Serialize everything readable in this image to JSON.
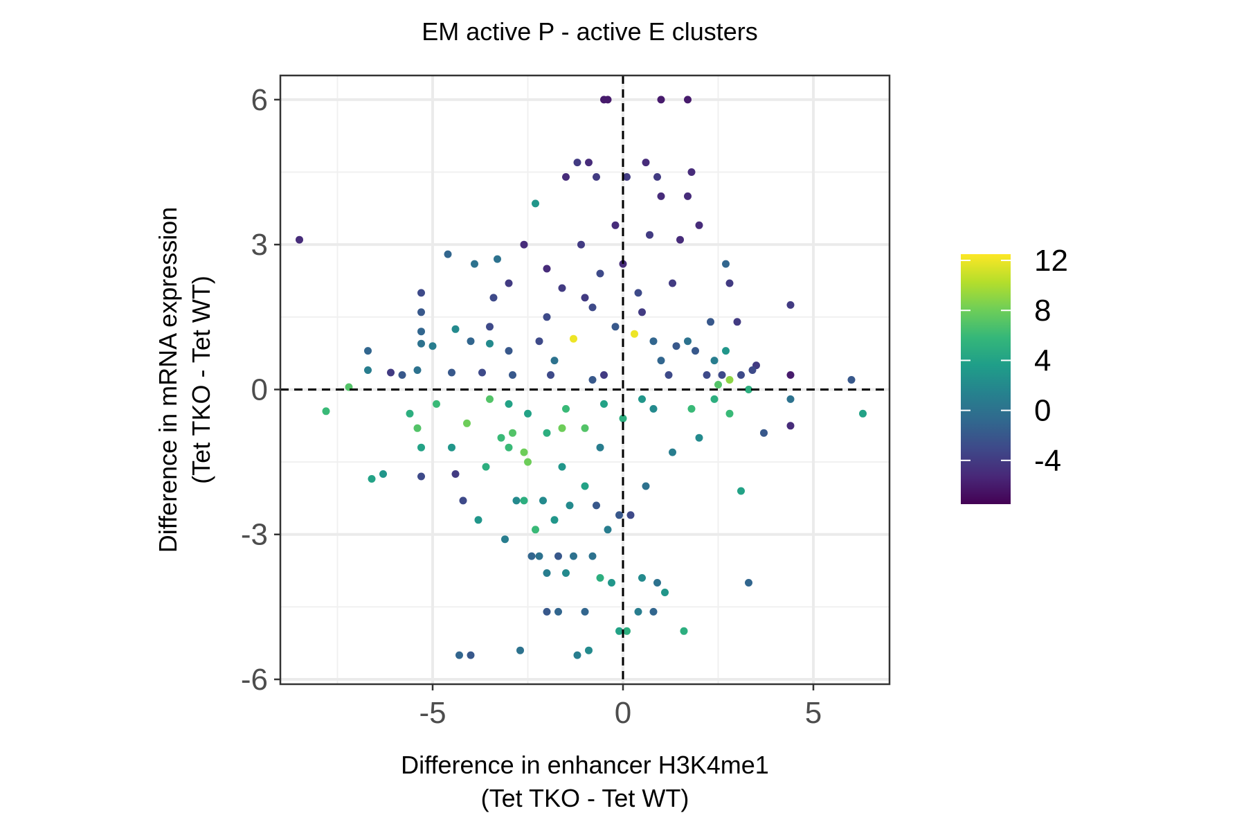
{
  "chart_data": {
    "type": "scatter",
    "title": "EM active P - active E clusters",
    "xlabel": [
      "Difference in enhancer H3K4me1",
      "(Tet TKO - Tet WT)"
    ],
    "ylabel": [
      "Difference in mRNA expression",
      "(Tet TKO - Tet WT)"
    ],
    "xlim": [
      -9.0,
      7.0
    ],
    "ylim": [
      -6.1,
      6.5
    ],
    "x_ticks": [
      -5,
      0,
      5
    ],
    "x_tick_labels": [
      "-5",
      "0",
      "5"
    ],
    "y_ticks": [
      -6,
      -3,
      0,
      3,
      6
    ],
    "y_tick_labels": [
      "-6",
      "-3",
      "0",
      "3",
      "6"
    ],
    "reference_lines": {
      "x": 0,
      "y": 0,
      "style": "dashed"
    },
    "grid": true,
    "legend": {
      "type": "colorbar",
      "placement": "right",
      "palette": "viridis",
      "range": [
        -7.5,
        12.5
      ],
      "ticks": [
        12,
        8,
        4,
        0,
        -4
      ],
      "tick_labels": [
        "12",
        "8",
        "4",
        "0",
        "-4"
      ],
      "stops": [
        "#440154",
        "#482878",
        "#3e4989",
        "#31688e",
        "#26828e",
        "#1f9e89",
        "#35b779",
        "#6ece58",
        "#b5de2b",
        "#fde725"
      ]
    },
    "points": [
      [
        -8.5,
        3.1,
        -5
      ],
      [
        -7.8,
        -0.45,
        6
      ],
      [
        -7.2,
        0.05,
        7
      ],
      [
        -6.7,
        0.8,
        -1
      ],
      [
        -6.7,
        0.4,
        1
      ],
      [
        -6.6,
        -1.85,
        4
      ],
      [
        -6.3,
        -1.75,
        3
      ],
      [
        -6.1,
        0.35,
        -4
      ],
      [
        -5.8,
        0.3,
        -2
      ],
      [
        -5.6,
        -0.5,
        5
      ],
      [
        -5.4,
        0.4,
        0
      ],
      [
        -5.4,
        -0.8,
        7
      ],
      [
        -5.3,
        2.0,
        -3
      ],
      [
        -5.3,
        1.6,
        -2
      ],
      [
        -5.3,
        1.2,
        -1
      ],
      [
        -5.3,
        0.95,
        0
      ],
      [
        -5.3,
        -1.2,
        4
      ],
      [
        -5.3,
        -1.8,
        -3
      ],
      [
        -5.0,
        0.9,
        1
      ],
      [
        -4.9,
        -0.3,
        6
      ],
      [
        -4.6,
        2.8,
        -1
      ],
      [
        -4.5,
        0.35,
        -2
      ],
      [
        -4.5,
        -1.2,
        3
      ],
      [
        -4.4,
        1.25,
        2
      ],
      [
        -4.4,
        -1.75,
        -4
      ],
      [
        -4.3,
        -5.5,
        -1
      ],
      [
        -4.2,
        -2.3,
        -3
      ],
      [
        -4.1,
        -0.7,
        8
      ],
      [
        -4.0,
        -5.5,
        -2
      ],
      [
        -4.0,
        1.0,
        -1
      ],
      [
        -3.9,
        2.6,
        0
      ],
      [
        -3.8,
        -2.7,
        3
      ],
      [
        -3.7,
        0.35,
        -3
      ],
      [
        -3.6,
        -1.6,
        5
      ],
      [
        -3.5,
        0.95,
        2
      ],
      [
        -3.5,
        1.3,
        -3
      ],
      [
        -3.4,
        1.9,
        -3
      ],
      [
        -3.3,
        2.7,
        0
      ],
      [
        -3.2,
        -1.0,
        6
      ],
      [
        -3.1,
        -3.1,
        1
      ],
      [
        -3.0,
        2.2,
        -4
      ],
      [
        -3.0,
        -0.3,
        4
      ],
      [
        -2.9,
        -0.9,
        7
      ],
      [
        -2.9,
        0.3,
        -2
      ],
      [
        -2.8,
        -2.3,
        2
      ],
      [
        -2.7,
        -5.4,
        0
      ],
      [
        -2.6,
        3.0,
        -5
      ],
      [
        -2.6,
        -2.3,
        5
      ],
      [
        -2.5,
        -1.5,
        8
      ],
      [
        -2.4,
        -3.45,
        -1
      ],
      [
        -2.3,
        -2.9,
        6
      ],
      [
        -2.3,
        3.85,
        3
      ],
      [
        -2.2,
        -3.45,
        0
      ],
      [
        -2.2,
        1.0,
        -3
      ],
      [
        -2.1,
        -2.3,
        2
      ],
      [
        -2.0,
        -3.8,
        1
      ],
      [
        -2.0,
        2.5,
        -5
      ],
      [
        -2.0,
        -4.6,
        -2
      ],
      [
        -1.9,
        0.3,
        -3
      ],
      [
        -1.8,
        -2.7,
        3
      ],
      [
        -1.7,
        -3.45,
        -2
      ],
      [
        -1.7,
        -4.6,
        -1
      ],
      [
        -1.6,
        2.1,
        -4
      ],
      [
        -1.6,
        -0.8,
        8
      ],
      [
        -1.5,
        -3.8,
        2
      ],
      [
        -1.5,
        4.4,
        -5
      ],
      [
        -1.4,
        -2.4,
        2
      ],
      [
        -1.3,
        1.05,
        12
      ],
      [
        -1.3,
        -3.45,
        0
      ],
      [
        -1.2,
        -5.5,
        1
      ],
      [
        -1.2,
        4.7,
        -4
      ],
      [
        -1.1,
        3.0,
        -4
      ],
      [
        -1.0,
        -4.6,
        -1
      ],
      [
        -1.0,
        -2.0,
        4
      ],
      [
        -0.9,
        4.7,
        -5
      ],
      [
        -0.9,
        -5.4,
        2
      ],
      [
        -0.8,
        1.7,
        -3
      ],
      [
        -0.8,
        -3.45,
        0
      ],
      [
        -0.7,
        4.4,
        -4
      ],
      [
        -0.7,
        -2.4,
        -2
      ],
      [
        -0.6,
        2.4,
        -3
      ],
      [
        -0.6,
        -3.9,
        5
      ],
      [
        -0.5,
        0.3,
        -4
      ],
      [
        -0.5,
        6.0,
        -6
      ],
      [
        -0.4,
        6.0,
        -6
      ],
      [
        -0.4,
        -2.9,
        1
      ],
      [
        -0.3,
        -4.0,
        3
      ],
      [
        -0.2,
        1.3,
        -2
      ],
      [
        -0.2,
        3.4,
        -5
      ],
      [
        -0.1,
        -2.6,
        -2
      ],
      [
        -0.1,
        -5.0,
        4
      ],
      [
        0.1,
        -5.0,
        5
      ],
      [
        0.1,
        4.4,
        -4
      ],
      [
        0.2,
        -2.6,
        -3
      ],
      [
        0.3,
        1.15,
        12
      ],
      [
        0.4,
        2.0,
        -3
      ],
      [
        0.4,
        -4.6,
        1
      ],
      [
        0.5,
        -3.9,
        2
      ],
      [
        0.6,
        4.7,
        -5
      ],
      [
        0.6,
        -2.0,
        0
      ],
      [
        0.7,
        3.2,
        -4
      ],
      [
        0.8,
        -4.6,
        -1
      ],
      [
        0.8,
        1.0,
        -1
      ],
      [
        0.9,
        4.4,
        -4
      ],
      [
        0.9,
        -4.0,
        0
      ],
      [
        1.0,
        6.0,
        -6
      ],
      [
        1.0,
        4.0,
        -5
      ],
      [
        1.1,
        -4.2,
        3
      ],
      [
        1.2,
        0.3,
        -3
      ],
      [
        1.3,
        2.2,
        -4
      ],
      [
        1.3,
        -1.3,
        1
      ],
      [
        1.4,
        0.9,
        -2
      ],
      [
        1.5,
        3.1,
        -5
      ],
      [
        1.6,
        -5.0,
        5
      ],
      [
        1.7,
        6.0,
        -6
      ],
      [
        1.7,
        1.0,
        0
      ],
      [
        1.7,
        4.0,
        -5
      ],
      [
        1.8,
        -0.4,
        6
      ],
      [
        1.8,
        4.5,
        -5
      ],
      [
        1.9,
        0.8,
        -2
      ],
      [
        2.0,
        3.4,
        -5
      ],
      [
        2.0,
        -1.0,
        2
      ],
      [
        2.2,
        0.3,
        -3
      ],
      [
        2.3,
        1.4,
        -2
      ],
      [
        2.4,
        0.6,
        1
      ],
      [
        2.4,
        -0.2,
        5
      ],
      [
        2.5,
        0.1,
        7
      ],
      [
        2.6,
        0.3,
        -3
      ],
      [
        2.7,
        2.6,
        -1
      ],
      [
        2.7,
        0.8,
        3
      ],
      [
        2.8,
        -0.5,
        6
      ],
      [
        2.8,
        2.2,
        -4
      ],
      [
        2.8,
        0.2,
        9
      ],
      [
        3.0,
        1.4,
        -4
      ],
      [
        3.1,
        -2.1,
        4
      ],
      [
        3.1,
        0.3,
        -3
      ],
      [
        3.3,
        -4.0,
        -1
      ],
      [
        3.3,
        0.0,
        5
      ],
      [
        3.4,
        0.4,
        -3
      ],
      [
        3.7,
        -0.9,
        -2
      ],
      [
        3.5,
        0.5,
        -4
      ],
      [
        4.4,
        1.75,
        -4
      ],
      [
        4.4,
        0.3,
        -6
      ],
      [
        4.4,
        -0.75,
        -5
      ],
      [
        4.4,
        -0.2,
        0
      ],
      [
        6.0,
        0.2,
        -2
      ],
      [
        6.3,
        -0.5,
        4
      ],
      [
        -3.5,
        -0.2,
        7
      ],
      [
        -3.0,
        -1.2,
        6
      ],
      [
        -2.5,
        -0.5,
        4
      ],
      [
        -2.0,
        -0.9,
        5
      ],
      [
        -1.5,
        -0.4,
        6
      ],
      [
        -1.0,
        -0.8,
        7
      ],
      [
        -0.5,
        -0.3,
        4
      ],
      [
        0.0,
        -0.6,
        5
      ],
      [
        0.5,
        -0.2,
        3
      ],
      [
        -3.0,
        0.8,
        -2
      ],
      [
        -2.0,
        1.5,
        -3
      ],
      [
        -1.0,
        1.9,
        -4
      ],
      [
        0.0,
        2.6,
        -5
      ],
      [
        0.5,
        1.6,
        -4
      ],
      [
        1.0,
        0.6,
        -1
      ],
      [
        -1.8,
        0.6,
        0
      ],
      [
        -0.8,
        0.2,
        -2
      ],
      [
        0.8,
        -0.4,
        2
      ],
      [
        -2.6,
        -1.3,
        8
      ],
      [
        -1.6,
        -1.6,
        3
      ],
      [
        -0.6,
        -1.2,
        1
      ]
    ]
  }
}
